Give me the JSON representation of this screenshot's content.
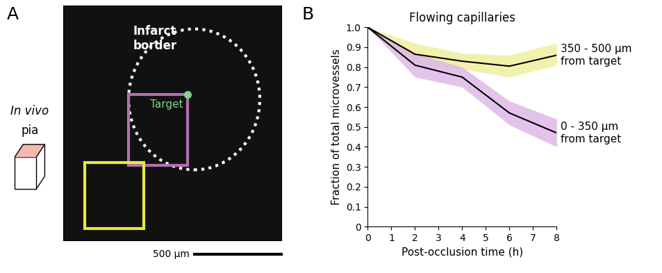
{
  "panel_a": {
    "label": "A",
    "side_label": [
      "In vivo",
      "pia"
    ],
    "infarct_label": "Infarct\nborder",
    "target_label": "Target",
    "scale_bar": "500 µm"
  },
  "chart_data": {
    "type": "line",
    "panel_label": "B",
    "title": "Flowing capillaries",
    "x_label": "Post-occlusion time (h)",
    "y_label": "Fraction of total microvessels",
    "x": [
      0,
      2,
      4,
      6,
      8
    ],
    "series": [
      {
        "name": "350 - 500 µm\nfrom target",
        "color": "#000000",
        "band_color": "#eeee99",
        "values": [
          1.0,
          0.865,
          0.83,
          0.805,
          0.86
        ],
        "lower": [
          1.0,
          0.82,
          0.79,
          0.75,
          0.81
        ],
        "upper": [
          1.0,
          0.92,
          0.87,
          0.86,
          0.92
        ]
      },
      {
        "name": "0 - 350 µm\nfrom target",
        "color": "#000000",
        "band_color": "#dcb4e6",
        "values": [
          1.0,
          0.81,
          0.75,
          0.57,
          0.47
        ],
        "lower": [
          1.0,
          0.75,
          0.7,
          0.51,
          0.4
        ],
        "upper": [
          1.0,
          0.87,
          0.8,
          0.63,
          0.54
        ]
      }
    ],
    "xlim": [
      0,
      8
    ],
    "xticks": [
      0,
      1,
      2,
      3,
      4,
      5,
      6,
      7,
      8
    ],
    "ylim": [
      0,
      1
    ],
    "yticks": [
      0,
      0.1,
      0.2,
      0.3,
      0.4,
      0.5,
      0.6,
      0.7,
      0.8,
      0.9,
      {
        "value": 1,
        "label": "1.0"
      }
    ],
    "grid": false
  }
}
